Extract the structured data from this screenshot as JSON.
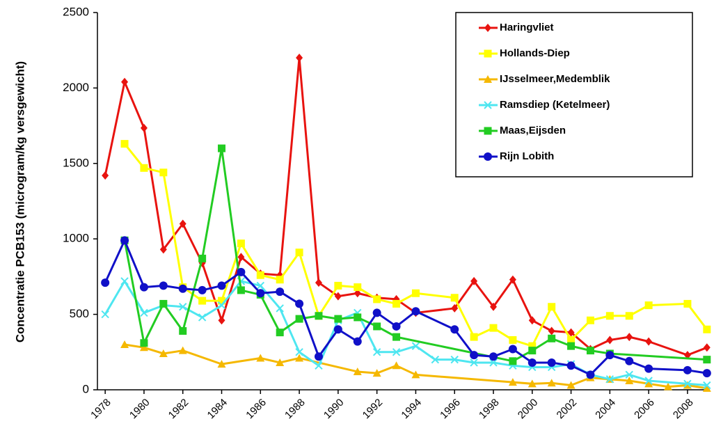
{
  "chart_data": {
    "type": "line",
    "y_label": "Concentratie PCB153  (microgram/kg versgewicht)",
    "xlim": [
      1977.6,
      2009.15
    ],
    "xticks": [
      1978,
      1980,
      1982,
      1984,
      1986,
      1988,
      1990,
      1992,
      1994,
      1996,
      1998,
      2000,
      2002,
      2004,
      2006,
      2008
    ],
    "ylim": [
      0,
      2500
    ],
    "yticks": [
      0,
      500,
      1000,
      1500,
      2000,
      2500
    ],
    "legend": "top-right",
    "series": [
      {
        "name": "Haringvliet",
        "color": "#e8130f",
        "marker": "diamond",
        "x": [
          1978,
          1979,
          1980,
          1981,
          1982,
          1983,
          1984,
          1985,
          1986,
          1987,
          1988,
          1989,
          1990,
          1991,
          1992,
          1993,
          1994,
          1996,
          1997,
          1998,
          1999,
          2000,
          2001,
          2002,
          2003,
          2004,
          2005,
          2006,
          2008,
          2009
        ],
        "values": [
          1420,
          2040,
          1735,
          930,
          1100,
          840,
          460,
          880,
          770,
          760,
          2200,
          710,
          620,
          640,
          610,
          600,
          510,
          540,
          720,
          550,
          730,
          460,
          390,
          380,
          270,
          330,
          350,
          320,
          230,
          280
        ]
      },
      {
        "name": "Hollands-Diep",
        "color": "#ffff00",
        "marker": "square",
        "x": [
          1979,
          1980,
          1981,
          1982,
          1983,
          1984,
          1985,
          1986,
          1987,
          1988,
          1989,
          1990,
          1991,
          1992,
          1993,
          1994,
          1996,
          1997,
          1998,
          1999,
          2000,
          2001,
          2002,
          2003,
          2004,
          2005,
          2006,
          2008,
          2009
        ],
        "values": [
          1630,
          1470,
          1440,
          680,
          590,
          590,
          970,
          760,
          730,
          910,
          490,
          690,
          680,
          600,
          570,
          640,
          610,
          350,
          410,
          330,
          290,
          550,
          330,
          460,
          490,
          490,
          560,
          570,
          400
        ]
      },
      {
        "name": "IJsselmeer,Medemblik",
        "color": "#f5b800",
        "marker": "triangle",
        "x": [
          1979,
          1980,
          1981,
          1982,
          1984,
          1986,
          1987,
          1988,
          1991,
          1992,
          1993,
          1994,
          1999,
          2000,
          2001,
          2002,
          2003,
          2004,
          2005,
          2006,
          2007,
          2008,
          2009
        ],
        "values": [
          300,
          280,
          240,
          260,
          170,
          210,
          180,
          210,
          120,
          110,
          160,
          100,
          50,
          40,
          45,
          30,
          80,
          70,
          60,
          40,
          20,
          30,
          10
        ]
      },
      {
        "name": "Ramsdiep (Ketelmeer)",
        "color": "#4ee6f0",
        "marker": "cross",
        "x": [
          1978,
          1979,
          1980,
          1981,
          1982,
          1983,
          1984,
          1985,
          1986,
          1987,
          1988,
          1989,
          1990,
          1991,
          1992,
          1993,
          1994,
          1995,
          1996,
          1997,
          1998,
          1999,
          2000,
          2001,
          2002,
          2003,
          2004,
          2005,
          2006,
          2008,
          2009
        ],
        "values": [
          500,
          720,
          510,
          560,
          550,
          480,
          560,
          720,
          690,
          540,
          250,
          160,
          460,
          510,
          250,
          250,
          290,
          200,
          200,
          180,
          180,
          160,
          150,
          150,
          170,
          100,
          70,
          100,
          60,
          40,
          30
        ]
      },
      {
        "name": "Maas,Eijsden",
        "color": "#22cc22",
        "marker": "square",
        "x": [
          1979,
          1980,
          1981,
          1982,
          1983,
          1984,
          1985,
          1986,
          1987,
          1988,
          1989,
          1990,
          1991,
          1992,
          1993,
          1999,
          2000,
          2001,
          2002,
          2003,
          2004,
          2009
        ],
        "values": [
          990,
          310,
          570,
          390,
          870,
          1600,
          660,
          630,
          380,
          470,
          490,
          470,
          480,
          420,
          350,
          190,
          260,
          340,
          290,
          260,
          240,
          200
        ]
      },
      {
        "name": "Rijn Lobith",
        "color": "#1010c8",
        "marker": "circle",
        "x": [
          1978,
          1979,
          1980,
          1981,
          1982,
          1983,
          1984,
          1985,
          1986,
          1987,
          1988,
          1989,
          1990,
          1991,
          1992,
          1993,
          1994,
          1996,
          1997,
          1998,
          1999,
          2000,
          2001,
          2002,
          2003,
          2004,
          2005,
          2006,
          2008,
          2009
        ],
        "values": [
          710,
          990,
          680,
          690,
          670,
          660,
          690,
          780,
          640,
          650,
          570,
          220,
          400,
          320,
          510,
          420,
          520,
          400,
          230,
          220,
          270,
          180,
          180,
          160,
          100,
          230,
          190,
          140,
          130,
          110
        ]
      }
    ]
  }
}
